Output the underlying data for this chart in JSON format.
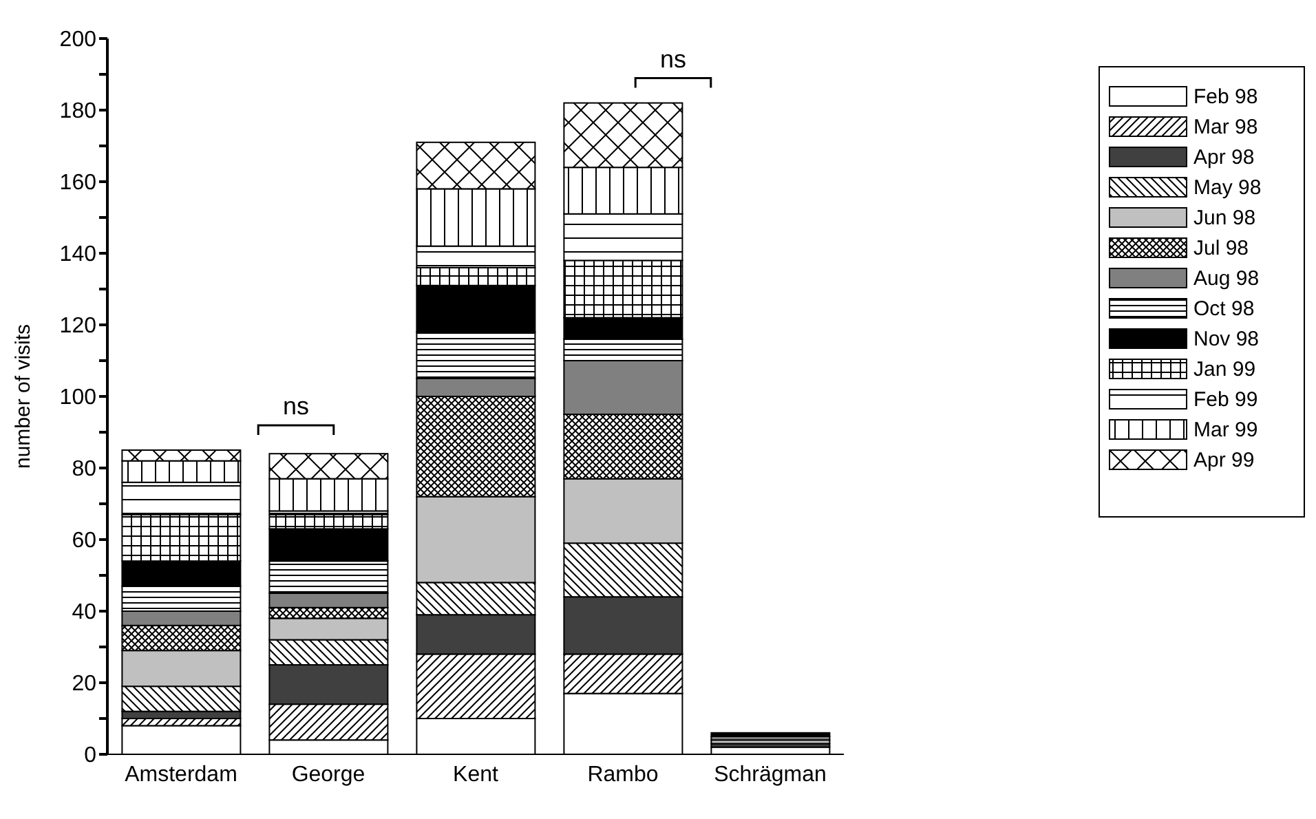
{
  "chart_data": {
    "type": "bar",
    "stacked": true,
    "categories": [
      "Amsterdam",
      "George",
      "Kent",
      "Rambo",
      "Schrägman"
    ],
    "ylabel": "number of visits",
    "ylim": [
      0,
      200
    ],
    "yticks": [
      0,
      {
        "value": 10,
        "label": null
      },
      20,
      {
        "value": 30,
        "label": null
      },
      40,
      {
        "value": 50,
        "label": null
      },
      60,
      {
        "value": 70,
        "label": null
      },
      80,
      {
        "value": 90,
        "label": null
      },
      100,
      {
        "value": 110,
        "label": null
      },
      120,
      {
        "value": 130,
        "label": null
      },
      140,
      {
        "value": 150,
        "label": null
      },
      160,
      {
        "value": 170,
        "label": null
      },
      180,
      {
        "value": 190,
        "label": null
      },
      200
    ],
    "series": [
      {
        "name": "Feb 98",
        "color": "#ffffff",
        "values": [
          8,
          4,
          10,
          17,
          2
        ]
      },
      {
        "name": "Mar 98",
        "color": "#ffffff",
        "values": [
          2,
          10,
          18,
          11,
          0
        ]
      },
      {
        "name": "Apr 98",
        "color": "#404040",
        "values": [
          2,
          11,
          11,
          16,
          1
        ]
      },
      {
        "name": "May 98",
        "color": "#ffffff",
        "values": [
          7,
          7,
          9,
          15,
          0
        ]
      },
      {
        "name": "Jun 98",
        "color": "#c0c0c0",
        "values": [
          10,
          6,
          24,
          18,
          1
        ]
      },
      {
        "name": "Jul 98",
        "color": "#ffffff",
        "values": [
          7,
          3,
          28,
          18,
          0
        ]
      },
      {
        "name": "Aug 98",
        "color": "#808080",
        "values": [
          4,
          4,
          5,
          15,
          1
        ]
      },
      {
        "name": "Oct 98",
        "color": "#ffffff",
        "values": [
          7,
          9,
          13,
          6,
          0
        ]
      },
      {
        "name": "Nov 98",
        "color": "#000000",
        "values": [
          7,
          9,
          13,
          6,
          1
        ]
      },
      {
        "name": "Jan 99",
        "color": "#ffffff",
        "values": [
          13,
          4,
          5,
          16,
          0
        ]
      },
      {
        "name": "Feb 99",
        "color": "#ffffff",
        "values": [
          9,
          1,
          6,
          13,
          0
        ]
      },
      {
        "name": "Mar 99",
        "color": "#ffffff",
        "values": [
          6,
          9,
          16,
          13,
          0
        ]
      },
      {
        "name": "Apr 99",
        "color": "#ffffff",
        "values": [
          3,
          7,
          13,
          18,
          0
        ]
      }
    ],
    "annotations": [
      "ns",
      "ns"
    ],
    "legend": "top right"
  }
}
